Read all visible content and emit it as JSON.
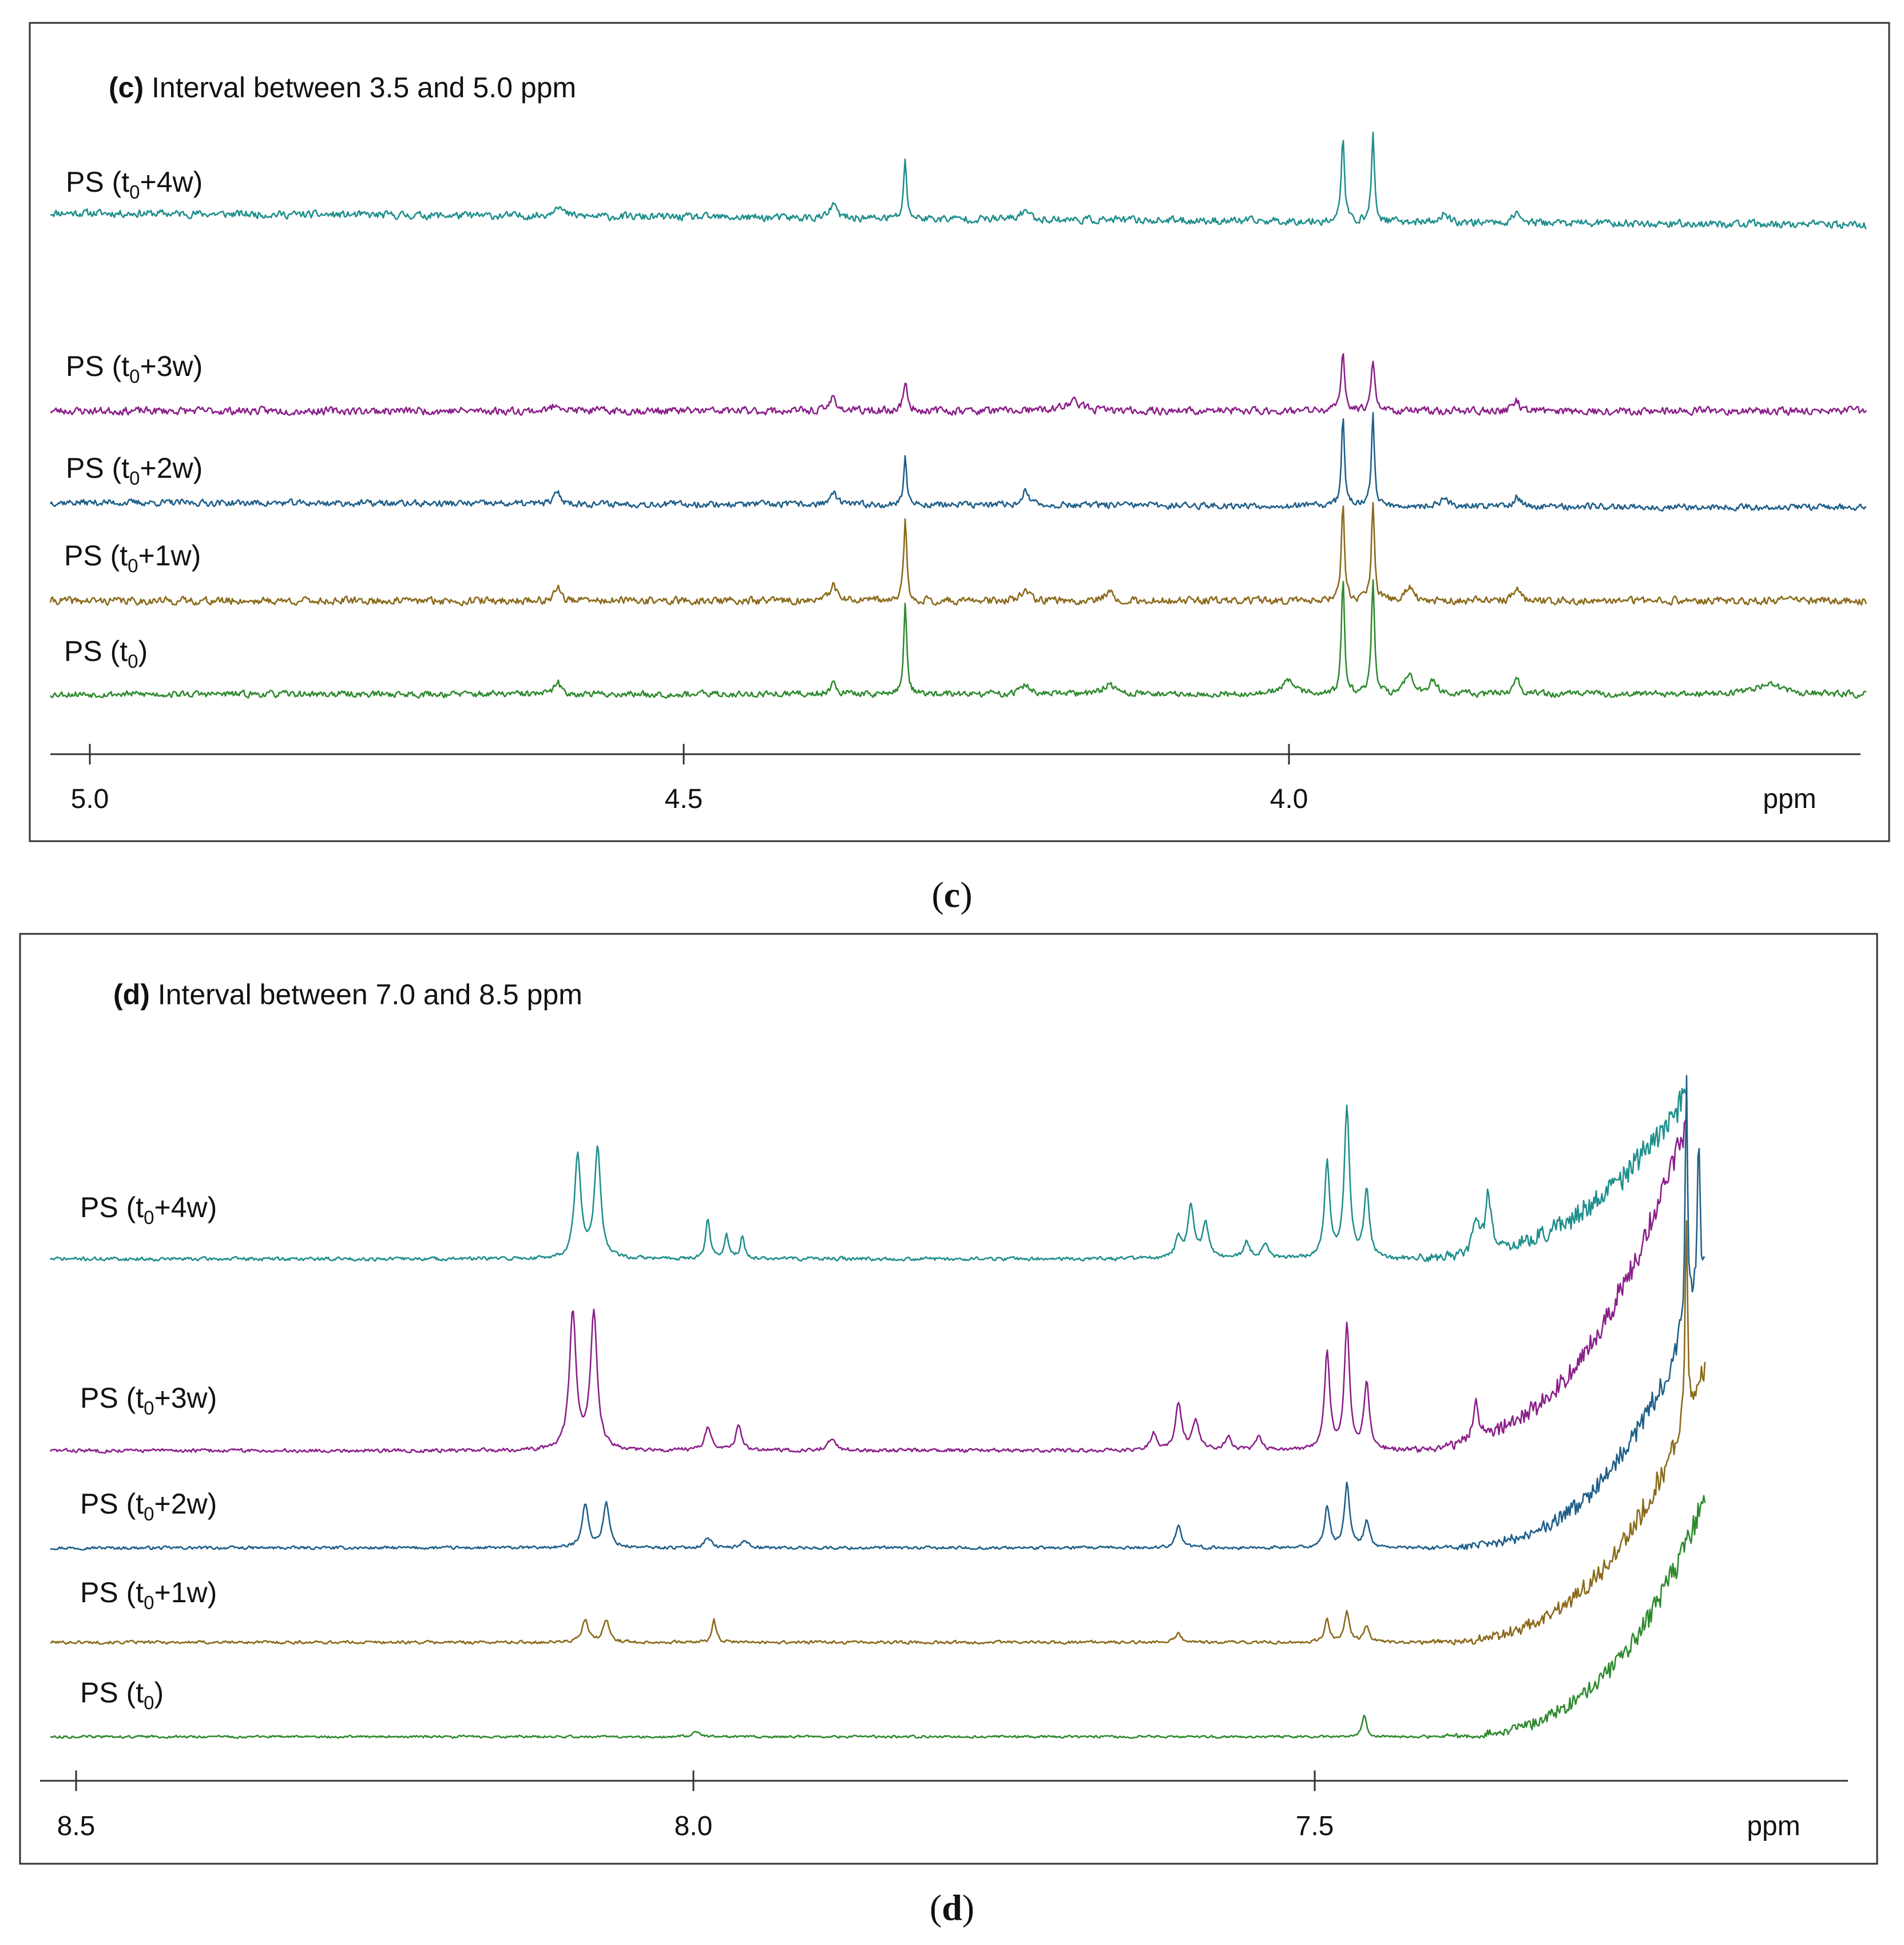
{
  "figure": {
    "panels": [
      {
        "id": "c",
        "title_bold": "(c)",
        "title_text": " Interval between 3.5 and 5.0 ppm",
        "caption_letter": "c",
        "axis_unit": "ppm",
        "ticks": [
          "5.0",
          "4.5",
          "4.0"
        ]
      },
      {
        "id": "d",
        "title_bold": "(d)",
        "title_text": " Interval between 7.0 and 8.5 ppm",
        "caption_letter": "d",
        "axis_unit": "ppm",
        "ticks": [
          "8.5",
          "8.0",
          "7.5"
        ]
      }
    ]
  },
  "chart_data": [
    {
      "type": "line",
      "title": "(c) Interval between 3.5 and 5.0 ppm",
      "xlabel": "ppm",
      "xlim": [
        5.0,
        3.52
      ],
      "x_reversed": true,
      "xticks": [
        5.0,
        4.5,
        4.0
      ],
      "grid": false,
      "series": [
        {
          "name": "PS (t0+4w)",
          "label_main": "PS (t",
          "label_sub": "0",
          "label_tail": "+4w)",
          "color": "#1f8f8c",
          "offset": 4.3,
          "drift": -0.25,
          "noise": 0.07,
          "seed": 11,
          "peaks": [
            [
              4.61,
              0.25,
              0.004
            ],
            [
              4.38,
              0.3,
              0.003
            ],
            [
              4.32,
              1.2,
              0.0015
            ],
            [
              4.22,
              0.2,
              0.004
            ],
            [
              3.955,
              1.8,
              0.0015
            ],
            [
              3.93,
              1.8,
              0.0015
            ],
            [
              3.87,
              0.2,
              0.003
            ],
            [
              3.81,
              0.25,
              0.003
            ]
          ],
          "rise": null
        },
        {
          "name": "PS (t0+3w)",
          "label_main": "PS (t",
          "label_sub": "0",
          "label_tail": "+3w)",
          "color": "#8b1f8a",
          "offset": 2.25,
          "drift": 0,
          "noise": 0.07,
          "seed": 23,
          "peaks": [
            [
              4.61,
              0.15,
              0.004
            ],
            [
              4.38,
              0.3,
              0.003
            ],
            [
              4.32,
              0.6,
              0.002
            ],
            [
              4.18,
              0.2,
              0.008
            ],
            [
              3.955,
              1.2,
              0.0018
            ],
            [
              3.93,
              1.1,
              0.0018
            ],
            [
              3.81,
              0.2,
              0.003
            ]
          ],
          "rise": null
        },
        {
          "name": "PS (t0+2w)",
          "label_main": "PS (t",
          "label_sub": "0",
          "label_tail": "+2w)",
          "color": "#1f5f8a",
          "offset": 1.2,
          "drift": -0.1,
          "noise": 0.06,
          "seed": 37,
          "peaks": [
            [
              4.61,
              0.25,
              0.003
            ],
            [
              4.38,
              0.25,
              0.003
            ],
            [
              4.32,
              1.0,
              0.0015
            ],
            [
              4.22,
              0.3,
              0.003
            ],
            [
              3.955,
              1.9,
              0.0015
            ],
            [
              3.93,
              1.9,
              0.0015
            ],
            [
              3.87,
              0.2,
              0.003
            ],
            [
              3.81,
              0.2,
              0.003
            ]
          ],
          "rise": null
        },
        {
          "name": "PS (t0+1w)",
          "label_main": "PS (t",
          "label_sub": "0",
          "label_tail": "+1w)",
          "color": "#8a6a1a",
          "offset": 0.05,
          "drift": 0,
          "noise": 0.07,
          "seed": 41,
          "peaks": [
            [
              4.61,
              0.3,
              0.003
            ],
            [
              4.38,
              0.35,
              0.003
            ],
            [
              4.32,
              1.7,
              0.0015
            ],
            [
              4.22,
              0.2,
              0.004
            ],
            [
              4.15,
              0.2,
              0.004
            ],
            [
              3.955,
              2.1,
              0.0015
            ],
            [
              3.93,
              2.1,
              0.0015
            ],
            [
              3.9,
              0.3,
              0.004
            ],
            [
              3.81,
              0.3,
              0.003
            ]
          ],
          "rise": null
        },
        {
          "name": "PS (t0)",
          "label_main": "PS (t",
          "label_sub": "0",
          "label_tail": ")",
          "color": "#2e8a2e",
          "offset": -1.05,
          "drift": 0,
          "noise": 0.06,
          "seed": 53,
          "peaks": [
            [
              4.61,
              0.25,
              0.003
            ],
            [
              4.38,
              0.25,
              0.003
            ],
            [
              4.32,
              1.9,
              0.0015
            ],
            [
              4.22,
              0.2,
              0.004
            ],
            [
              4.15,
              0.2,
              0.006
            ],
            [
              4.0,
              0.3,
              0.006
            ],
            [
              3.955,
              2.4,
              0.0015
            ],
            [
              3.93,
              2.4,
              0.0015
            ],
            [
              3.9,
              0.4,
              0.004
            ],
            [
              3.88,
              0.3,
              0.004
            ],
            [
              3.81,
              0.35,
              0.003
            ],
            [
              3.6,
              0.25,
              0.01
            ]
          ],
          "rise": null
        }
      ]
    },
    {
      "type": "line",
      "title": "(d) Interval between 7.0 and 8.5 ppm",
      "xlabel": "ppm",
      "xlim": [
        8.52,
        7.08
      ],
      "x_reversed": true,
      "xticks": [
        8.5,
        8.0,
        7.5
      ],
      "grid": false,
      "series": [
        {
          "name": "PS (t0+4w)",
          "label_main": "PS (t",
          "label_sub": "0",
          "label_tail": "+4w)",
          "color": "#1f8f8c",
          "offset": 5.35,
          "drift": 0,
          "noise": 0.06,
          "seed": 71,
          "peaks": [
            [
              8.095,
              3.8,
              0.003
            ],
            [
              8.079,
              4.0,
              0.003
            ],
            [
              7.99,
              1.5,
              0.002
            ],
            [
              7.975,
              0.9,
              0.002
            ],
            [
              7.962,
              0.8,
              0.002
            ],
            [
              7.61,
              0.7,
              0.003
            ],
            [
              7.6,
              1.9,
              0.003
            ],
            [
              7.588,
              1.2,
              0.003
            ],
            [
              7.555,
              0.6,
              0.003
            ],
            [
              7.54,
              0.5,
              0.003
            ],
            [
              7.49,
              3.5,
              0.0025
            ],
            [
              7.474,
              5.5,
              0.0025
            ],
            [
              7.458,
              2.5,
              0.0025
            ],
            [
              7.37,
              1.2,
              0.003
            ],
            [
              7.36,
              2.0,
              0.003
            ]
          ],
          "rise": [
            7.46,
            7.2,
            6.0
          ]
        },
        {
          "name": "PS (t0+3w)",
          "label_main": "PS (t",
          "label_sub": "0",
          "label_tail": "+3w)",
          "color": "#8b1f8a",
          "offset": 2.25,
          "drift": 0,
          "noise": 0.06,
          "seed": 83,
          "peaks": [
            [
              8.099,
              5.0,
              0.0032
            ],
            [
              8.082,
              5.0,
              0.0032
            ],
            [
              7.99,
              0.8,
              0.003
            ],
            [
              7.965,
              0.9,
              0.003
            ],
            [
              7.89,
              0.4,
              0.004
            ],
            [
              7.63,
              0.6,
              0.003
            ],
            [
              7.61,
              1.7,
              0.003
            ],
            [
              7.596,
              1.1,
              0.003
            ],
            [
              7.57,
              0.5,
              0.003
            ],
            [
              7.545,
              0.5,
              0.003
            ],
            [
              7.49,
              3.5,
              0.0025
            ],
            [
              7.474,
              4.5,
              0.0025
            ],
            [
              7.458,
              2.5,
              0.0025
            ],
            [
              7.37,
              1.3,
              0.003
            ]
          ],
          "rise": [
            7.46,
            7.2,
            12.0
          ]
        },
        {
          "name": "PS (t0+2w)",
          "label_main": "PS (t",
          "label_sub": "0",
          "label_tail": "+2w)",
          "color": "#1f5f8a",
          "offset": 0.65,
          "drift": 0,
          "noise": 0.05,
          "seed": 97,
          "peaks": [
            [
              8.089,
              1.6,
              0.003
            ],
            [
              8.072,
              1.6,
              0.003
            ],
            [
              7.99,
              0.4,
              0.003
            ],
            [
              7.96,
              0.3,
              0.003
            ],
            [
              7.61,
              0.8,
              0.003
            ],
            [
              7.49,
              1.5,
              0.0025
            ],
            [
              7.474,
              2.3,
              0.0025
            ],
            [
              7.458,
              1.0,
              0.0025
            ],
            [
              7.2,
              9.0,
              0.0012
            ],
            [
              7.19,
              6.0,
              0.0012
            ]
          ],
          "rise": [
            7.42,
            7.17,
            12.0
          ]
        },
        {
          "name": "PS (t0+1w)",
          "label_main": "PS (t",
          "label_sub": "0",
          "label_tail": "+1w)",
          "color": "#8a6a1a",
          "offset": -0.45,
          "drift": 0,
          "noise": 0.05,
          "seed": 101,
          "peaks": [
            [
              8.089,
              0.8,
              0.003
            ],
            [
              8.072,
              0.8,
              0.003
            ],
            [
              7.985,
              0.8,
              0.002
            ],
            [
              7.61,
              0.3,
              0.003
            ],
            [
              7.49,
              0.8,
              0.0025
            ],
            [
              7.474,
              1.1,
              0.0025
            ],
            [
              7.458,
              0.6,
              0.0025
            ],
            [
              7.2,
              7.0,
              0.0012
            ]
          ],
          "rise": [
            7.43,
            7.17,
            12.0
          ]
        },
        {
          "name": "PS (t0)",
          "label_main": "PS (t",
          "label_sub": "0",
          "label_tail": ")",
          "color": "#2e8a2e",
          "offset": -1.55,
          "drift": 0,
          "noise": 0.04,
          "seed": 113,
          "peaks": [
            [
              8.0,
              0.2,
              0.003
            ],
            [
              7.46,
              0.8,
              0.002
            ]
          ],
          "rise": [
            7.42,
            7.16,
            12.0
          ]
        }
      ]
    }
  ]
}
